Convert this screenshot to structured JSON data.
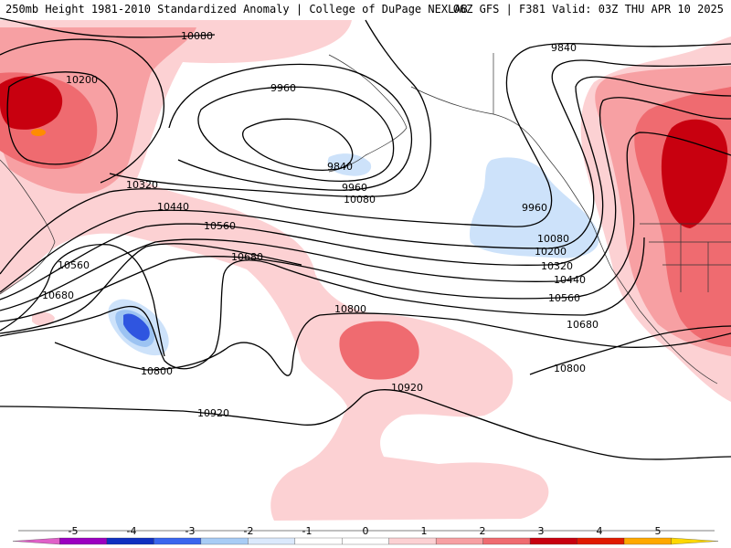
{
  "header": {
    "title": "250mb Height 1981-2010 Standardized Anomaly | College of DuPage NEXLAB",
    "model_run": "06Z GFS | F381 Valid: 03Z THU APR 10 2025"
  },
  "contours": [
    {
      "label": "10080"
    },
    {
      "label": "10200"
    },
    {
      "label": "9960"
    },
    {
      "label": "9840"
    },
    {
      "label": "9840"
    },
    {
      "label": "9960"
    },
    {
      "label": "10080"
    },
    {
      "label": "10320"
    },
    {
      "label": "10440"
    },
    {
      "label": "10560"
    },
    {
      "label": "10680"
    },
    {
      "label": "10560"
    },
    {
      "label": "10680"
    },
    {
      "label": "10800"
    },
    {
      "label": "10800"
    },
    {
      "label": "10920"
    },
    {
      "label": "10920"
    },
    {
      "label": "9960"
    },
    {
      "label": "10080"
    },
    {
      "label": "10200"
    },
    {
      "label": "10320"
    },
    {
      "label": "10440"
    },
    {
      "label": "10560"
    },
    {
      "label": "10680"
    },
    {
      "label": "10800"
    }
  ],
  "colorbar": {
    "segment_colors": [
      "#e060c8",
      "#9b00c0",
      "#1030c0",
      "#3a66ee",
      "#a8ccf5",
      "#dbe9fc",
      "#ffffff",
      "#ffffff",
      "#fcd1d3",
      "#f7a0a3",
      "#ef6b70",
      "#c8000f",
      "#e01a00",
      "#ffa800",
      "#ffd800"
    ],
    "tick_labels": [
      "-5",
      "-4",
      "-3",
      "-2",
      "-1",
      "0",
      "1",
      "2",
      "3",
      "4",
      "5"
    ]
  },
  "colors": {
    "anom_pos1": "#fcd1d3",
    "anom_pos2": "#f7a0a3",
    "anom_pos3": "#ef6b70",
    "anom_pos4": "#c8000f",
    "anom_pos5": "#ff8c00",
    "anom_neg1": "#cde2fa",
    "anom_neg2": "#9cc3f2",
    "anom_neg3": "#2f55e0"
  }
}
